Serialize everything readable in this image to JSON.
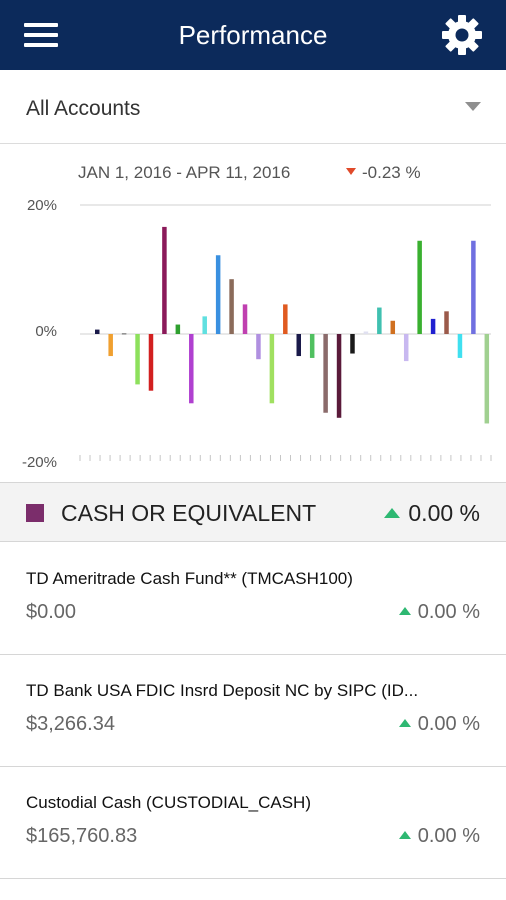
{
  "header": {
    "title": "Performance",
    "menu_icon": "hamburger-menu-icon",
    "settings_icon": "gear-icon",
    "bar_color": "#0c2a5b"
  },
  "account_select": {
    "selected": "All Accounts"
  },
  "summary": {
    "date_range": "JAN 1, 2016 - APR 11, 2016",
    "change": "-0.23 %",
    "change_direction": "down"
  },
  "chart_data": {
    "type": "bar",
    "yticks": [
      "20%",
      "0%",
      "-20%"
    ],
    "ylim": [
      -20,
      20
    ],
    "grid": "zero-line and top line only",
    "values": [
      0.7,
      -3.5,
      0.1,
      -8,
      -9,
      17,
      1.5,
      -11,
      2.8,
      12.5,
      8.7,
      4.7,
      -4,
      -11,
      4.7,
      -3.5,
      -3.8,
      -12.5,
      -13.3,
      -3.1,
      0.4,
      4.2,
      2.1,
      -4.3,
      14.8,
      2.4,
      3.6,
      -3.8,
      14.8,
      -14.2
    ],
    "colors": [
      "#1a1a4a",
      "#f0a030",
      "#555555",
      "#8de05c",
      "#d22020",
      "#8b1a5a",
      "#2fa02f",
      "#b040d0",
      "#60e0e0",
      "#3a90e0",
      "#8b6b5a",
      "#c040b0",
      "#b090e0",
      "#a0e060",
      "#e05a20",
      "#1a1a4a",
      "#50c060",
      "#8b6b6b",
      "#5a1a3a",
      "#1a1a1a",
      "#e0e0f0",
      "#40c0b0",
      "#d07020",
      "#c8b8f0",
      "#3ab030",
      "#2020d0",
      "#9b5a4a",
      "#40e0f0",
      "#7070e0",
      "#a0d090"
    ]
  },
  "category": {
    "name": "CASH OR EQUIVALENT",
    "change": "0.00 %",
    "swatch_color": "#7b2d6b"
  },
  "holdings": [
    {
      "name": "TD Ameritrade Cash Fund** (TMCASH100)",
      "value": "$0.00",
      "change": "0.00 %"
    },
    {
      "name": "TD Bank USA FDIC Insrd Deposit NC by SIPC (ID...",
      "value": "$3,266.34",
      "change": "0.00 %"
    },
    {
      "name": "Custodial Cash (CUSTODIAL_CASH)",
      "value": "$165,760.83",
      "change": "0.00 %"
    }
  ]
}
